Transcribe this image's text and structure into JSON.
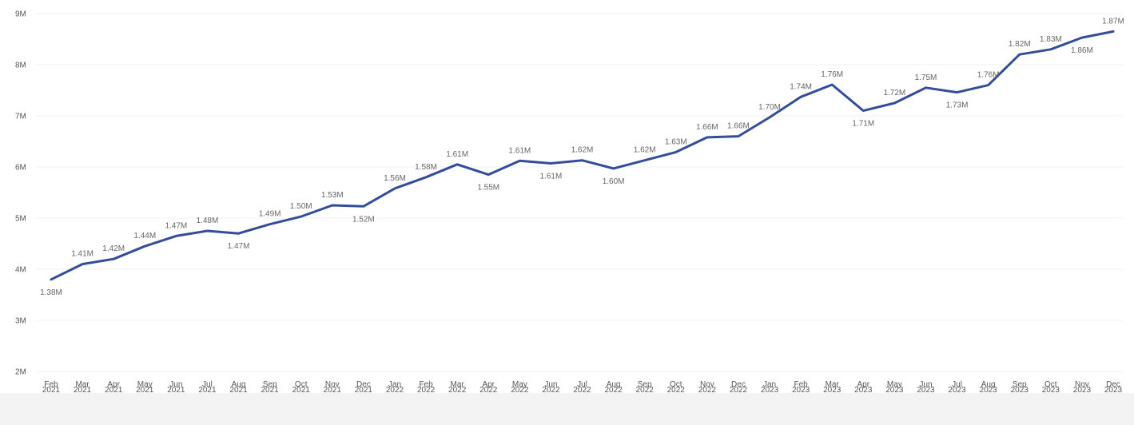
{
  "chart_data": {
    "type": "line",
    "title": "",
    "xlabel": "",
    "ylabel": "",
    "ylim": [
      2000000,
      9000000
    ],
    "y_ticks": [
      {
        "value": 2000000,
        "label": "2M"
      },
      {
        "value": 3000000,
        "label": "3M"
      },
      {
        "value": 4000000,
        "label": "4M"
      },
      {
        "value": 5000000,
        "label": "5M"
      },
      {
        "value": 6000000,
        "label": "6M"
      },
      {
        "value": 7000000,
        "label": "7M"
      },
      {
        "value": 8000000,
        "label": "8M"
      },
      {
        "value": 9000000,
        "label": "9M"
      }
    ],
    "grid": true,
    "line_color": "#344c9c",
    "points": [
      {
        "month": "Feb",
        "year": "2021",
        "value": 3800000,
        "label": "1.38M",
        "pos": "below"
      },
      {
        "month": "Mar",
        "year": "2021",
        "value": 4100000,
        "label": "1.41M",
        "pos": "above"
      },
      {
        "month": "Apr",
        "year": "2021",
        "value": 4200000,
        "label": "1.42M",
        "pos": "above"
      },
      {
        "month": "May",
        "year": "2021",
        "value": 4450000,
        "label": "1.44M",
        "pos": "above"
      },
      {
        "month": "Jun",
        "year": "2021",
        "value": 4650000,
        "label": "1.47M",
        "pos": "above"
      },
      {
        "month": "Jul",
        "year": "2021",
        "value": 4750000,
        "label": "1.48M",
        "pos": "above"
      },
      {
        "month": "Aug",
        "year": "2021",
        "value": 4700000,
        "label": "1.47M",
        "pos": "below"
      },
      {
        "month": "Sep",
        "year": "2021",
        "value": 4880000,
        "label": "1.49M",
        "pos": "above"
      },
      {
        "month": "Oct",
        "year": "2021",
        "value": 5030000,
        "label": "1.50M",
        "pos": "above"
      },
      {
        "month": "Nov",
        "year": "2021",
        "value": 5250000,
        "label": "1.53M",
        "pos": "above"
      },
      {
        "month": "Dec",
        "year": "2021",
        "value": 5230000,
        "label": "1.52M",
        "pos": "below"
      },
      {
        "month": "Jan",
        "year": "2022",
        "value": 5580000,
        "label": "1.56M",
        "pos": "above"
      },
      {
        "month": "Feb",
        "year": "2022",
        "value": 5800000,
        "label": "1.58M",
        "pos": "above"
      },
      {
        "month": "Mar",
        "year": "2022",
        "value": 6050000,
        "label": "1.61M",
        "pos": "above"
      },
      {
        "month": "Apr",
        "year": "2022",
        "value": 5850000,
        "label": "1.55M",
        "pos": "below"
      },
      {
        "month": "May",
        "year": "2022",
        "value": 6120000,
        "label": "1.61M",
        "pos": "above"
      },
      {
        "month": "Jun",
        "year": "2022",
        "value": 6070000,
        "label": "1.61M",
        "pos": "below"
      },
      {
        "month": "Jul",
        "year": "2022",
        "value": 6130000,
        "label": "1.62M",
        "pos": "above"
      },
      {
        "month": "Aug",
        "year": "2022",
        "value": 5970000,
        "label": "1.60M",
        "pos": "below"
      },
      {
        "month": "Sep",
        "year": "2022",
        "value": 6130000,
        "label": "1.62M",
        "pos": "above"
      },
      {
        "month": "Oct",
        "year": "2022",
        "value": 6290000,
        "label": "1.63M",
        "pos": "above"
      },
      {
        "month": "Nov",
        "year": "2022",
        "value": 6580000,
        "label": "1.66M",
        "pos": "above"
      },
      {
        "month": "Dec",
        "year": "2022",
        "value": 6600000,
        "label": "1.66M",
        "pos": "above"
      },
      {
        "month": "Jan",
        "year": "2023",
        "value": 6970000,
        "label": "1.70M",
        "pos": "above"
      },
      {
        "month": "Feb",
        "year": "2023",
        "value": 7370000,
        "label": "1.74M",
        "pos": "above"
      },
      {
        "month": "Mar",
        "year": "2023",
        "value": 7610000,
        "label": "1.76M",
        "pos": "above"
      },
      {
        "month": "Apr",
        "year": "2023",
        "value": 7100000,
        "label": "1.71M",
        "pos": "below"
      },
      {
        "month": "May",
        "year": "2023",
        "value": 7250000,
        "label": "1.72M",
        "pos": "above"
      },
      {
        "month": "Jun",
        "year": "2023",
        "value": 7550000,
        "label": "1.75M",
        "pos": "above"
      },
      {
        "month": "Jul",
        "year": "2023",
        "value": 7460000,
        "label": "1.73M",
        "pos": "below"
      },
      {
        "month": "Aug",
        "year": "2023",
        "value": 7600000,
        "label": "1.76M",
        "pos": "above"
      },
      {
        "month": "Sep",
        "year": "2023",
        "value": 8200000,
        "label": "1.82M",
        "pos": "above"
      },
      {
        "month": "Oct",
        "year": "2023",
        "value": 8300000,
        "label": "1.83M",
        "pos": "above"
      },
      {
        "month": "Nov",
        "year": "2023",
        "value": 8530000,
        "label": "1.86M",
        "pos": "below"
      },
      {
        "month": "Dec",
        "year": "2023",
        "value": 8650000,
        "label": "1.87M",
        "pos": "above"
      }
    ]
  }
}
